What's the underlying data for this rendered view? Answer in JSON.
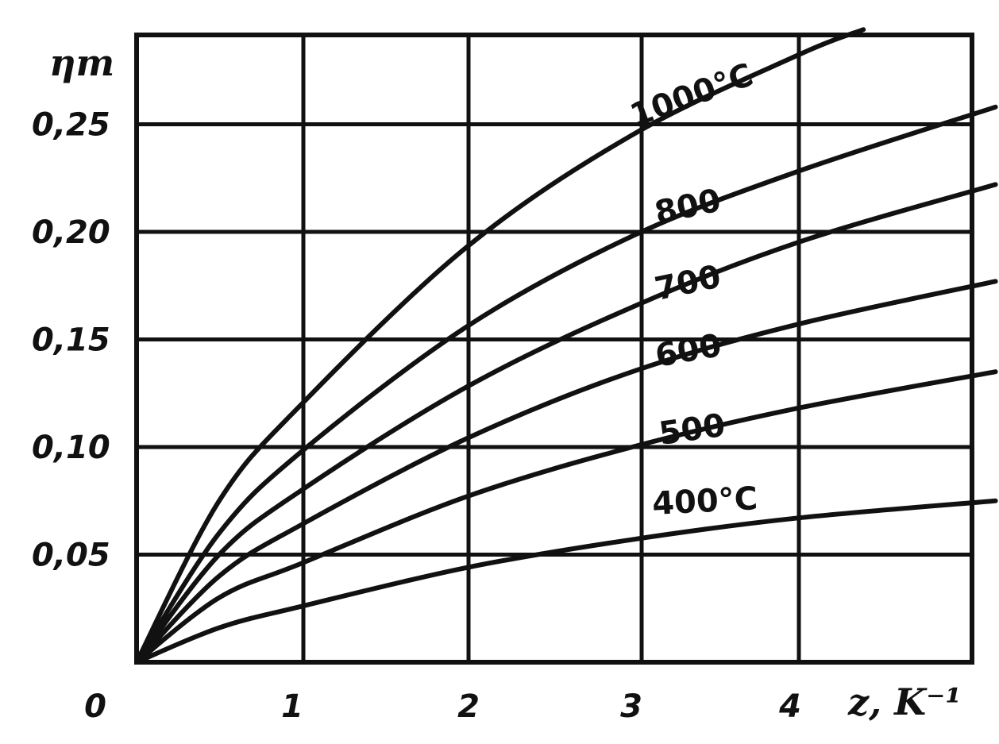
{
  "chart_data": {
    "type": "line",
    "ylabel": "ηт",
    "xlabel": "z, K⁻¹",
    "xlim": [
      0,
      5.2
    ],
    "ylim": [
      0,
      0.29
    ],
    "x_ticks": [
      "0",
      "1",
      "2",
      "3",
      "4"
    ],
    "y_ticks": [
      "0,05",
      "0,10",
      "0,15",
      "0,20",
      "0,25"
    ],
    "grid": true,
    "series": [
      {
        "name": "1000°C",
        "label": "1000°C",
        "x": [
          0,
          0.5,
          1,
          2,
          3,
          4,
          4.4
        ],
        "y": [
          0,
          0.075,
          0.12,
          0.193,
          0.245,
          0.282,
          0.294
        ]
      },
      {
        "name": "800",
        "label": "800",
        "x": [
          0,
          0.5,
          1,
          2,
          3,
          4,
          5.2
        ],
        "y": [
          0,
          0.06,
          0.098,
          0.156,
          0.198,
          0.228,
          0.258
        ]
      },
      {
        "name": "700",
        "label": "700",
        "x": [
          0,
          0.5,
          1,
          2,
          3,
          4,
          5.2
        ],
        "y": [
          0,
          0.05,
          0.08,
          0.128,
          0.165,
          0.195,
          0.222
        ]
      },
      {
        "name": "600",
        "label": "600",
        "x": [
          0,
          0.5,
          1,
          2,
          3,
          4,
          5.2
        ],
        "y": [
          0,
          0.04,
          0.064,
          0.104,
          0.135,
          0.157,
          0.177
        ]
      },
      {
        "name": "500",
        "label": "500",
        "x": [
          0,
          0.5,
          1,
          2,
          3,
          4,
          5.2
        ],
        "y": [
          0,
          0.03,
          0.046,
          0.077,
          0.1,
          0.118,
          0.135
        ]
      },
      {
        "name": "400°C",
        "label": "400°C",
        "x": [
          0,
          0.5,
          1,
          2,
          3,
          4,
          5.2
        ],
        "y": [
          0,
          0.016,
          0.026,
          0.044,
          0.057,
          0.067,
          0.075
        ]
      }
    ]
  }
}
